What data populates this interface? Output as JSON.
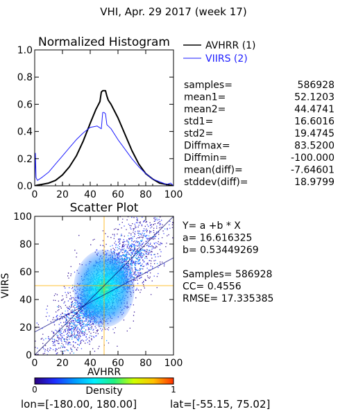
{
  "page_title": "VHI,  Apr. 29 2017 (week 17)",
  "footer": {
    "lon_label": "lon=[-180.00, 180.00]",
    "lat_label": "lat=[-55.15, 75.02]"
  },
  "colors": {
    "avhrr": "#000000",
    "viirs": "#1a1aff",
    "fit_line": "#000080"
  },
  "stats": {
    "rows": [
      {
        "label": "samples=",
        "value": "586928"
      },
      {
        "label": "mean1=",
        "value": "52.1203"
      },
      {
        "label": "mean2=",
        "value": "44.4741"
      },
      {
        "label": "std1=",
        "value": "16.6016"
      },
      {
        "label": "std2=",
        "value": "19.4745"
      },
      {
        "label": "Diffmax=",
        "value": "83.5200"
      },
      {
        "label": "Diffmin=",
        "value": "-100.000"
      },
      {
        "label": "mean(diff)=",
        "value": "-7.64601"
      },
      {
        "label": "stddev(diff)=",
        "value": "18.9799"
      }
    ]
  },
  "regression": {
    "lines": [
      "Y= a +b * X",
      "a= 16.616325",
      "b= 0.53449269",
      "",
      "Samples= 586928",
      "CC=  0.4556",
      "RMSE= 17.335385"
    ]
  },
  "colorbar": {
    "label": "Density",
    "min_label": "0",
    "max_label": "1",
    "stops": [
      "#2a0080",
      "#1e2dff",
      "#0098ff",
      "#00f0ff",
      "#20f080",
      "#cfff00",
      "#ffc000",
      "#ff3000"
    ]
  },
  "chart_data": [
    {
      "type": "line",
      "title": "Normalized Histogram",
      "xlim": [
        0,
        100
      ],
      "ylim": [
        0,
        1.0
      ],
      "xticks": [
        0,
        20,
        40,
        60,
        80,
        100
      ],
      "yticks": [
        0.0,
        0.2,
        0.4,
        0.6,
        0.8,
        1.0
      ],
      "ytick_labels": [
        "0.0",
        "0.2",
        "0.4",
        "0.6",
        "0.8",
        "1.0"
      ],
      "legend_position": "right of plot, top",
      "series": [
        {
          "name": "AVHRR (1)",
          "color": "#000000",
          "x": [
            0,
            2,
            5,
            10,
            15,
            20,
            25,
            30,
            35,
            40,
            44,
            46,
            47,
            48,
            49,
            50,
            51,
            52,
            53,
            55,
            60,
            65,
            70,
            75,
            80,
            85,
            90,
            95,
            98,
            100
          ],
          "y": [
            0.0,
            0.005,
            0.01,
            0.02,
            0.04,
            0.08,
            0.14,
            0.22,
            0.33,
            0.46,
            0.56,
            0.6,
            0.62,
            0.69,
            0.7,
            0.7,
            0.7,
            0.66,
            0.63,
            0.6,
            0.5,
            0.38,
            0.26,
            0.16,
            0.09,
            0.05,
            0.02,
            0.01,
            0.005,
            0.0
          ]
        },
        {
          "name": "VIIRS (2)",
          "color": "#1a1aff",
          "x": [
            0,
            0.5,
            1,
            2,
            5,
            10,
            15,
            20,
            25,
            30,
            35,
            40,
            45,
            48,
            49,
            50,
            51,
            52,
            55,
            60,
            65,
            70,
            75,
            80,
            85,
            90,
            95,
            98,
            100
          ],
          "y": [
            0.0,
            0.24,
            0.06,
            0.04,
            0.06,
            0.1,
            0.16,
            0.22,
            0.28,
            0.34,
            0.39,
            0.43,
            0.44,
            0.42,
            0.54,
            0.54,
            0.53,
            0.45,
            0.42,
            0.34,
            0.27,
            0.2,
            0.14,
            0.09,
            0.05,
            0.03,
            0.01,
            0.02,
            0.0
          ]
        }
      ]
    },
    {
      "type": "heatmap",
      "title": "Scatter Plot",
      "xlabel": "AVHRR",
      "ylabel": "VIIRS",
      "xlim": [
        0,
        100
      ],
      "ylim": [
        0,
        100
      ],
      "xticks": [
        0,
        20,
        40,
        60,
        80,
        100
      ],
      "yticks": [
        0,
        20,
        40,
        60,
        80,
        100
      ],
      "density_center": [
        50,
        48
      ],
      "reference_lines": [
        {
          "type": "vertical",
          "x": 50
        },
        {
          "type": "horizontal",
          "y": 50
        }
      ],
      "fit_line": {
        "intercept": 16.616325,
        "slope": 0.53449269
      },
      "diagonal": {
        "from": [
          0,
          0
        ],
        "to": [
          100,
          100
        ]
      }
    }
  ]
}
